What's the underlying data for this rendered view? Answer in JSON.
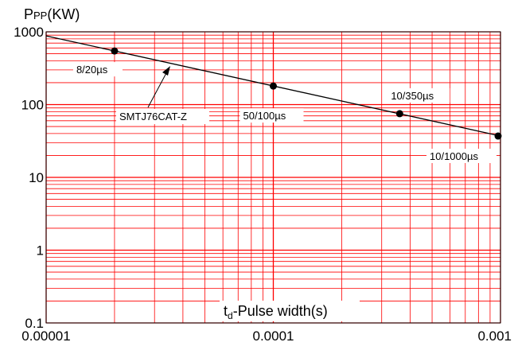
{
  "chart_data": {
    "type": "line",
    "title": "",
    "xlabel": "t_d-Pulse width(s)",
    "xlabel_parts": {
      "main": "t",
      "sub": "d",
      "rest": "-Pulse width(s)"
    },
    "ylabel_parts": {
      "main": "P",
      "sub": "PP",
      "rest": "(KW)"
    },
    "xscale": "log",
    "yscale": "log",
    "xlim": [
      1e-05,
      0.001
    ],
    "ylim": [
      0.1,
      1000
    ],
    "x_tick_labels": [
      "0.00001",
      "0.0001",
      "0.001"
    ],
    "y_tick_labels": [
      "0.1",
      "1",
      "10",
      "100",
      "1000"
    ],
    "grid": true,
    "colors": {
      "grid": "#ff0000",
      "line": "#000000",
      "point": "#000000"
    },
    "series": [
      {
        "name": "SMTJ76CAT-Z",
        "x": [
          1e-05,
          0.00105
        ],
        "y": [
          880,
          37
        ]
      }
    ],
    "points": [
      {
        "label": "8/20µs",
        "x": 2e-05,
        "y": 545
      },
      {
        "label": "50/100µs",
        "x": 0.0001,
        "y": 180
      },
      {
        "label": "10/350µs",
        "x": 0.00036,
        "y": 75
      },
      {
        "label": "10/1000µs",
        "x": 0.00105,
        "y": 37
      }
    ],
    "annotation": {
      "text": "SMTJ76CAT-Z"
    }
  }
}
